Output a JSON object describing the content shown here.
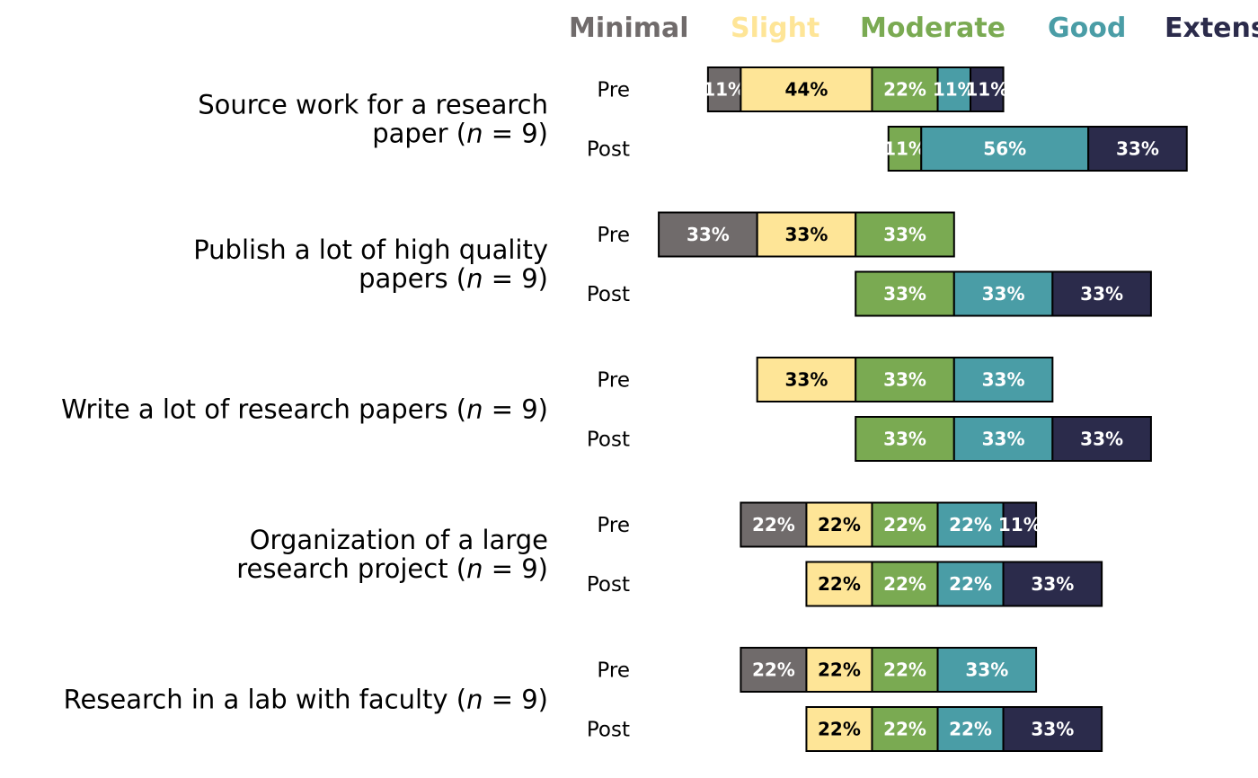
{
  "chart_data": {
    "type": "bar",
    "orientation": "horizontal-diverging-stacked",
    "title": "",
    "xlabel": "",
    "ylabel": "",
    "legend_position": "top",
    "legend": [
      {
        "name": "Minimal",
        "color": "#706b6b"
      },
      {
        "name": "Slight",
        "color": "#fee597"
      },
      {
        "name": "Moderate",
        "color": "#7aaa52"
      },
      {
        "name": "Good",
        "color": "#4a9da6"
      },
      {
        "name": "Extensive",
        "color": "#2b2b4b"
      }
    ],
    "label_colors": [
      "#ffffff",
      "#000000",
      "#ffffff",
      "#ffffff",
      "#ffffff"
    ],
    "questions": [
      {
        "label_lines": [
          "Source work for a research",
          "paper ("
        ],
        "n_text": "n",
        "n_suffix": " = 9)",
        "rows": [
          {
            "label": "Pre",
            "values": [
              11,
              44,
              22,
              11,
              11
            ],
            "labels": [
              "11%",
              "44%",
              "22%",
              "11%",
              "11%"
            ]
          },
          {
            "label": "Post",
            "values": [
              0,
              0,
              11,
              56,
              33
            ],
            "labels": [
              "",
              "",
              "11%",
              "56%",
              "33%"
            ]
          }
        ]
      },
      {
        "label_lines": [
          "Publish a lot of high quality",
          "papers ("
        ],
        "n_text": "n",
        "n_suffix": " = 9)",
        "rows": [
          {
            "label": "Pre",
            "values": [
              33,
              33,
              33,
              0,
              0
            ],
            "labels": [
              "33%",
              "33%",
              "33%",
              "",
              ""
            ]
          },
          {
            "label": "Post",
            "values": [
              0,
              0,
              33,
              33,
              33
            ],
            "labels": [
              "",
              "",
              "33%",
              "33%",
              "33%"
            ]
          }
        ]
      },
      {
        "label_lines": [
          "Write a lot of research papers ("
        ],
        "n_text": "n",
        "n_suffix": " = 9)",
        "rows": [
          {
            "label": "Pre",
            "values": [
              0,
              33,
              33,
              33,
              0
            ],
            "labels": [
              "",
              "33%",
              "33%",
              "33%",
              ""
            ]
          },
          {
            "label": "Post",
            "values": [
              0,
              0,
              33,
              33,
              33
            ],
            "labels": [
              "",
              "",
              "33%",
              "33%",
              "33%"
            ]
          }
        ]
      },
      {
        "label_lines": [
          "Organization of a large",
          "research project ("
        ],
        "n_text": "n",
        "n_suffix": " = 9)",
        "rows": [
          {
            "label": "Pre",
            "values": [
              22,
              22,
              22,
              22,
              11
            ],
            "labels": [
              "22%",
              "22%",
              "22%",
              "22%",
              "11%"
            ]
          },
          {
            "label": "Post",
            "values": [
              0,
              22,
              22,
              22,
              33
            ],
            "labels": [
              "",
              "22%",
              "22%",
              "22%",
              "33%"
            ]
          }
        ]
      },
      {
        "label_lines": [
          "Research in a lab with faculty ("
        ],
        "n_text": "n",
        "n_suffix": " = 9)",
        "rows": [
          {
            "label": "Pre",
            "values": [
              22,
              22,
              22,
              33,
              0
            ],
            "labels": [
              "22%",
              "22%",
              "22%",
              "33%",
              ""
            ]
          },
          {
            "label": "Post",
            "values": [
              0,
              22,
              22,
              22,
              33
            ],
            "labels": [
              "",
              "22%",
              "22%",
              "22%",
              "33%"
            ]
          }
        ]
      }
    ]
  }
}
